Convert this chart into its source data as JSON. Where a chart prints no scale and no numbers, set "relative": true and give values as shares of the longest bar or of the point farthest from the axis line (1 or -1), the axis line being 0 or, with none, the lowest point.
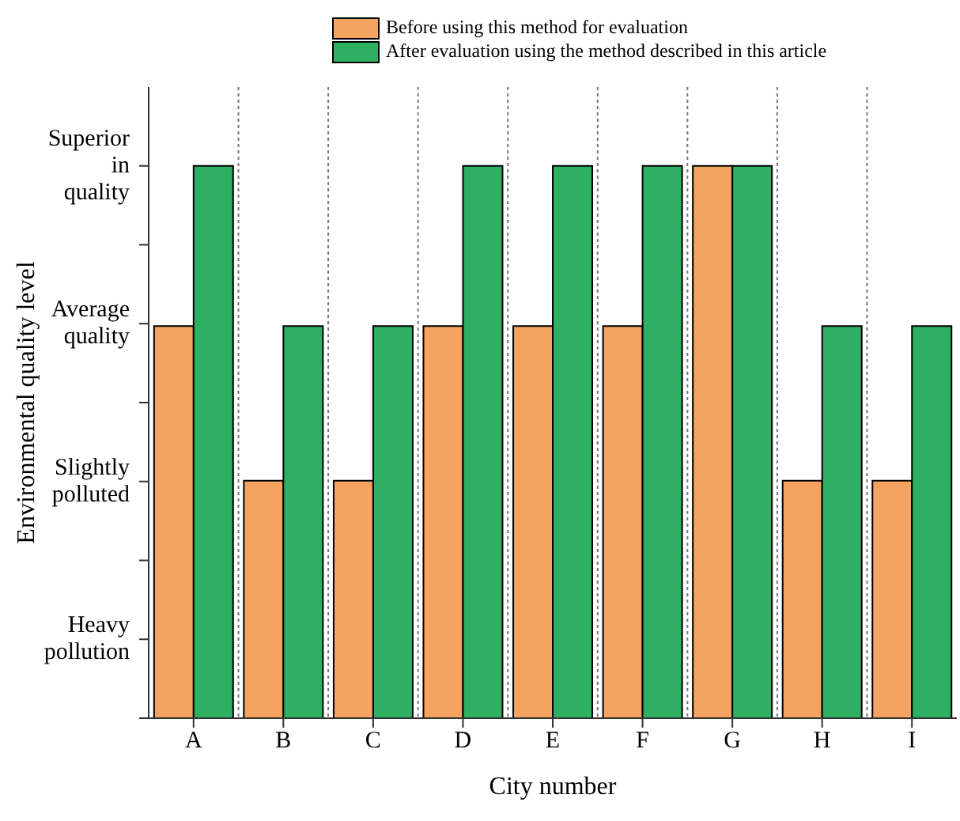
{
  "chart_data": {
    "type": "bar",
    "xlabel": "City number",
    "ylabel": "Environmental quality level",
    "categories": [
      "A",
      "B",
      "C",
      "D",
      "E",
      "F",
      "G",
      "H",
      "I"
    ],
    "series": [
      {
        "name": "Before using this method for evaluation",
        "color": "#f4a460",
        "values": [
          0.71,
          0.43,
          0.43,
          0.71,
          0.71,
          0.71,
          1,
          0.43,
          0.43
        ]
      },
      {
        "name": "After evaluation using the method described in this article",
        "color": "#2eb062",
        "values": [
          1,
          0.71,
          0.71,
          1,
          1,
          1,
          1,
          0.71,
          0.71
        ]
      }
    ],
    "relative": true,
    "annotations": [
      "Heavy pollution",
      "Slightly polluted",
      "Average quality",
      "Superior in quality"
    ],
    "grid": "x",
    "legend": "top"
  }
}
